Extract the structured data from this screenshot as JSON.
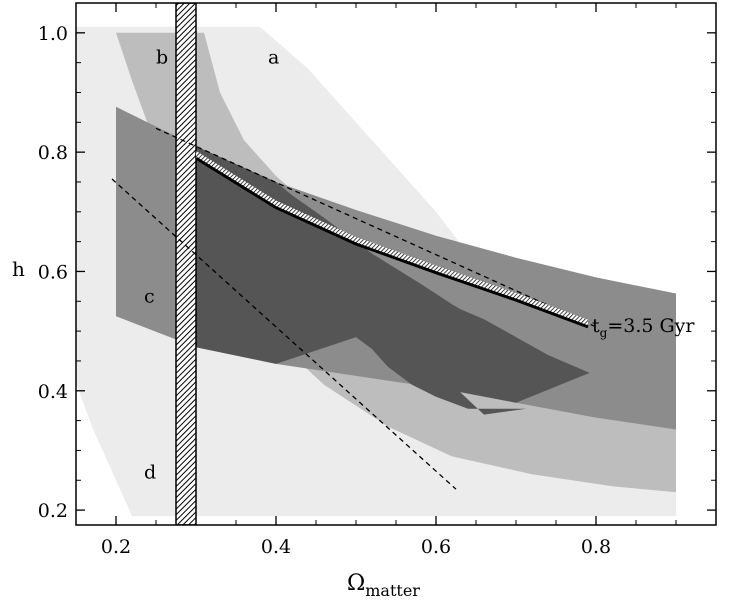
{
  "chart_data": {
    "type": "area",
    "xlabel": "Ω",
    "xlabel_subscript": "matter",
    "ylabel": "h",
    "xlim": [
      0.15,
      0.95
    ],
    "ylim": [
      0.175,
      1.05
    ],
    "x_ticks": [
      {
        "value": 0.2,
        "label": "0.2"
      },
      {
        "value": 0.4,
        "label": "0.4"
      },
      {
        "value": 0.6,
        "label": "0.6"
      },
      {
        "value": 0.8,
        "label": "0.8"
      }
    ],
    "y_ticks": [
      {
        "value": 0.2,
        "label": "0.2"
      },
      {
        "value": 0.4,
        "label": "0.4"
      },
      {
        "value": 0.6,
        "label": "0.6"
      },
      {
        "value": 0.8,
        "label": "0.8"
      },
      {
        "value": 1.0,
        "label": "1.0"
      }
    ],
    "colors": {
      "region_a": "#ececec",
      "region_b": "#bdbdbd",
      "region_c": "#8c8c8c",
      "overlap": "#555555",
      "hatch": "#000000",
      "line": "#000000"
    },
    "regions": [
      {
        "label": "a",
        "label_pos": [
          0.39,
          0.96
        ],
        "points": [
          [
            0.14,
            1.01
          ],
          [
            0.38,
            1.01
          ],
          [
            0.44,
            0.94
          ],
          [
            0.52,
            0.82
          ],
          [
            0.6,
            0.7
          ],
          [
            0.68,
            0.56
          ],
          [
            0.74,
            0.46
          ],
          [
            0.8,
            0.37
          ],
          [
            0.86,
            0.31
          ],
          [
            0.9,
            0.28
          ],
          [
            0.9,
            0.19
          ],
          [
            0.22,
            0.19
          ],
          [
            0.2,
            0.25
          ],
          [
            0.17,
            0.34
          ],
          [
            0.14,
            0.45
          ]
        ]
      },
      {
        "label": "b",
        "label_pos": [
          0.25,
          0.96
        ],
        "points": [
          [
            0.2,
            1.0
          ],
          [
            0.31,
            1.0
          ],
          [
            0.33,
            0.9
          ],
          [
            0.36,
            0.82
          ],
          [
            0.4,
            0.76
          ],
          [
            0.46,
            0.69
          ],
          [
            0.52,
            0.63
          ],
          [
            0.58,
            0.58
          ],
          [
            0.66,
            0.52
          ],
          [
            0.74,
            0.46
          ],
          [
            0.82,
            0.41
          ],
          [
            0.9,
            0.37
          ],
          [
            0.9,
            0.23
          ],
          [
            0.82,
            0.24
          ],
          [
            0.72,
            0.26
          ],
          [
            0.62,
            0.29
          ],
          [
            0.54,
            0.34
          ],
          [
            0.46,
            0.41
          ],
          [
            0.38,
            0.51
          ],
          [
            0.33,
            0.6
          ],
          [
            0.29,
            0.7
          ],
          [
            0.25,
            0.81
          ],
          [
            0.22,
            0.92
          ]
        ]
      },
      {
        "label": "c",
        "label_pos": [
          0.235,
          0.56
        ],
        "points": [
          [
            0.2,
            0.876
          ],
          [
            0.3,
            0.81
          ],
          [
            0.4,
            0.75
          ],
          [
            0.5,
            0.703
          ],
          [
            0.6,
            0.66
          ],
          [
            0.7,
            0.623
          ],
          [
            0.8,
            0.59
          ],
          [
            0.9,
            0.563
          ],
          [
            0.9,
            0.335
          ],
          [
            0.8,
            0.355
          ],
          [
            0.7,
            0.38
          ],
          [
            0.6,
            0.405
          ],
          [
            0.5,
            0.425
          ],
          [
            0.4,
            0.445
          ],
          [
            0.3,
            0.473
          ],
          [
            0.2,
            0.525
          ]
        ]
      },
      {
        "label": "",
        "label_pos": null,
        "points": [
          [
            0.3,
            0.81
          ],
          [
            0.4,
            0.75
          ],
          [
            0.42,
            0.728
          ],
          [
            0.46,
            0.69
          ],
          [
            0.52,
            0.63
          ],
          [
            0.58,
            0.58
          ],
          [
            0.62,
            0.545
          ],
          [
            0.63,
            0.537
          ],
          [
            0.66,
            0.52
          ],
          [
            0.74,
            0.46
          ],
          [
            0.792,
            0.43
          ],
          [
            0.7,
            0.38
          ],
          [
            0.63,
            0.398
          ],
          [
            0.66,
            0.36
          ],
          [
            0.713,
            0.37
          ],
          [
            0.64,
            0.37
          ],
          [
            0.6,
            0.39
          ],
          [
            0.57,
            0.41
          ],
          [
            0.54,
            0.44
          ],
          [
            0.52,
            0.47
          ],
          [
            0.5,
            0.49
          ],
          [
            0.4,
            0.445
          ],
          [
            0.3,
            0.473
          ]
        ]
      }
    ],
    "band": {
      "label": "d",
      "label_pos": [
        0.24,
        0.265
      ],
      "x_min": 0.275,
      "x_max": 0.3
    },
    "curve": {
      "label": "t",
      "label_subscript": "g",
      "label_suffix": "=3.5 Gyr",
      "label_pos": [
        0.795,
        0.515
      ],
      "points": [
        [
          0.3,
          0.79
        ],
        [
          0.4,
          0.707
        ],
        [
          0.5,
          0.646
        ],
        [
          0.6,
          0.598
        ],
        [
          0.7,
          0.552
        ],
        [
          0.79,
          0.507
        ]
      ]
    },
    "dashed_lines": [
      {
        "points": [
          [
            0.25,
            0.84
          ],
          [
            0.8,
            0.507
          ]
        ]
      },
      {
        "points": [
          [
            0.195,
            0.755
          ],
          [
            0.625,
            0.235
          ]
        ]
      }
    ]
  }
}
